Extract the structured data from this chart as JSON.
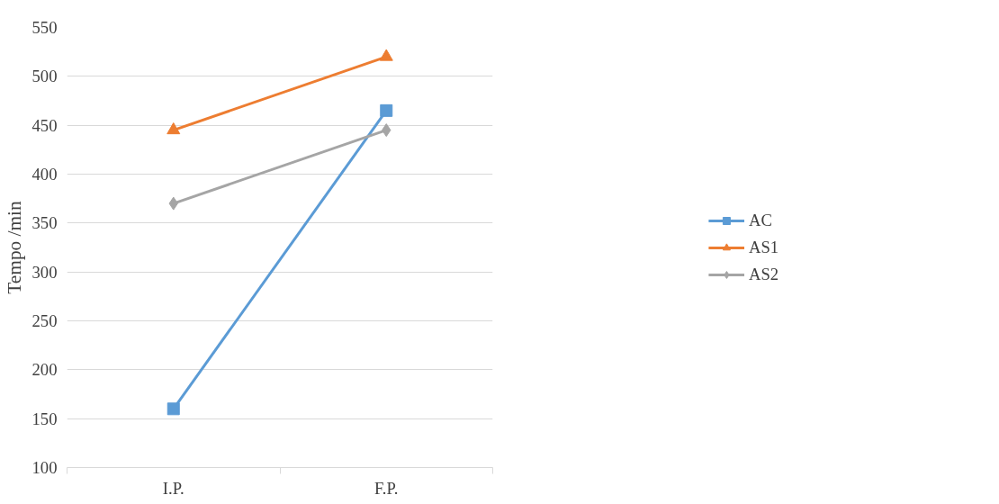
{
  "chart_data": {
    "type": "line",
    "ylabel": "Tempo /min",
    "categories": [
      "I.P.",
      "F.P."
    ],
    "ylim": [
      100,
      550
    ],
    "yticks": [
      100,
      150,
      200,
      250,
      300,
      350,
      400,
      450,
      500,
      550
    ],
    "grid": "y",
    "legend": "right",
    "series": [
      {
        "name": "AC",
        "color": "#5b9bd5",
        "values": [
          160,
          465
        ],
        "marker": "square"
      },
      {
        "name": "AS1",
        "color": "#ed7d31",
        "values": [
          445,
          520
        ],
        "marker": "triangle"
      },
      {
        "name": "AS2",
        "color": "#a5a5a5",
        "values": [
          370,
          445
        ],
        "marker": "diamond"
      }
    ]
  }
}
